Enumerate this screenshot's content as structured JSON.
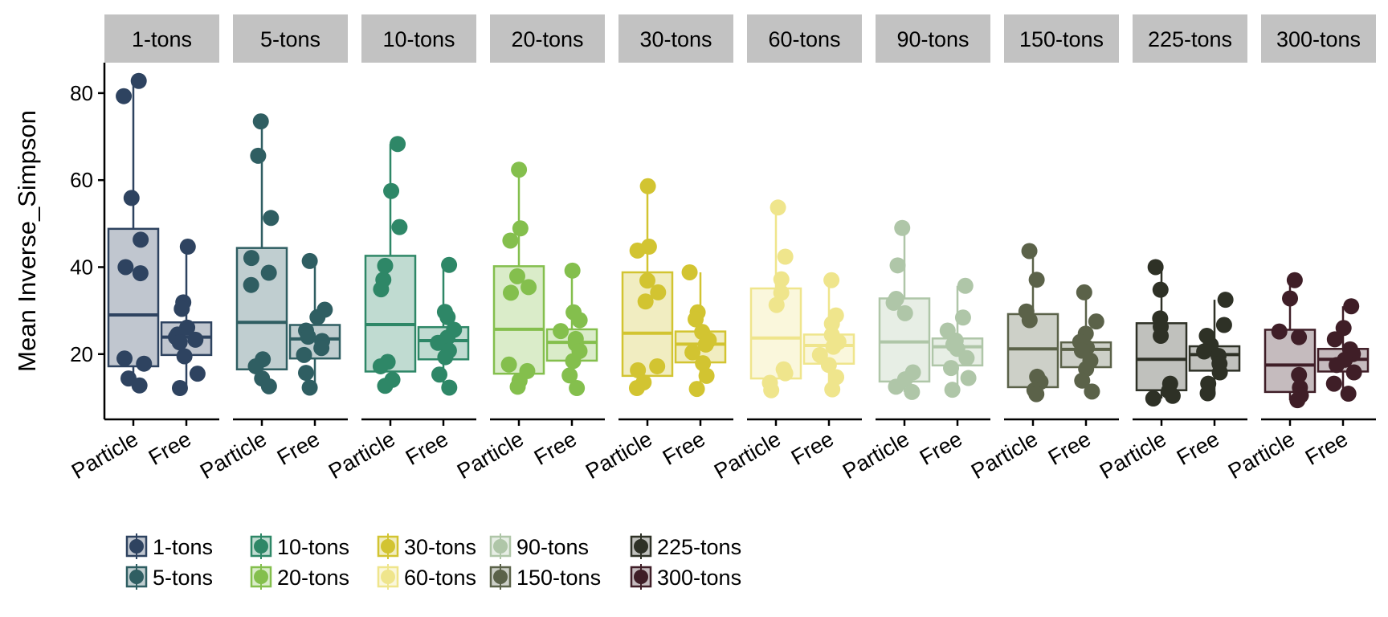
{
  "chart_data": {
    "type": "boxplot",
    "ylabel": "Mean Inverse_Simpson",
    "xlabel": "",
    "ylim": [
      5,
      87
    ],
    "y_ticks": [
      20,
      40,
      60,
      80
    ],
    "categories": [
      "Particle",
      "Free"
    ],
    "grid": false,
    "legend_position": "bottom-left",
    "panels": [
      {
        "name": "1-tons",
        "color": "#2E4360",
        "groups": [
          {
            "category": "Particle",
            "min": 12.8,
            "q1": 17.2,
            "median": 29,
            "q3": 48.8,
            "max": 82.8,
            "points": [
              82.8,
              79.3,
              55.9,
              46.3,
              40,
              38.6,
              19,
              17.8,
              14.4,
              12.8
            ]
          },
          {
            "category": "Free",
            "min": 12.2,
            "q1": 19.8,
            "median": 23.9,
            "q3": 27.3,
            "max": 44.7,
            "points": [
              44.7,
              31.9,
              30.4,
              26.1,
              24.5,
              23.9,
              23.3,
              22.7,
              19.5,
              15.5,
              12.2
            ]
          }
        ]
      },
      {
        "name": "5-tons",
        "color": "#2F5E62",
        "groups": [
          {
            "category": "Particle",
            "min": 12.6,
            "q1": 16.5,
            "median": 27.3,
            "q3": 44.4,
            "max": 73.5,
            "points": [
              73.5,
              65.6,
              51.3,
              42.1,
              38.7,
              35.9,
              18.8,
              17.2,
              14.4,
              12.6
            ]
          },
          {
            "category": "Free",
            "min": 12.3,
            "q1": 19,
            "median": 23.5,
            "q3": 26.7,
            "max": 41.4,
            "points": [
              41.4,
              30.2,
              28.5,
              25.4,
              24,
              23,
              21.4,
              19.8,
              15.7,
              12.3
            ]
          }
        ]
      },
      {
        "name": "10-tons",
        "color": "#2E8767",
        "groups": [
          {
            "category": "Particle",
            "min": 12.7,
            "q1": 16,
            "median": 26.8,
            "q3": 42.6,
            "max": 68.3,
            "points": [
              68.3,
              57.5,
              49.2,
              40.3,
              37.1,
              34.9,
              18.2,
              17.2,
              14.1,
              12.7
            ]
          },
          {
            "category": "Free",
            "min": 12.3,
            "q1": 18.8,
            "median": 23.1,
            "q3": 26.2,
            "max": 40.5,
            "points": [
              40.5,
              29.7,
              28.5,
              25.6,
              23.8,
              22.6,
              20.8,
              19.3,
              15.3,
              12.3
            ]
          }
        ]
      },
      {
        "name": "20-tons",
        "color": "#84BF4D",
        "groups": [
          {
            "category": "Particle",
            "min": 12.5,
            "q1": 15.5,
            "median": 25.7,
            "q3": 40.2,
            "max": 62.4,
            "points": [
              62.4,
              48.9,
              46.1,
              37.9,
              35.4,
              34.1,
              17.6,
              16.1,
              13.9,
              12.5
            ]
          },
          {
            "category": "Free",
            "min": 12.2,
            "q1": 18.5,
            "median": 22.7,
            "q3": 25.7,
            "max": 39.2,
            "points": [
              39.2,
              29.6,
              27.8,
              25.3,
              23.5,
              22.4,
              20.7,
              18.4,
              15.1,
              12.2
            ]
          }
        ]
      },
      {
        "name": "30-tons",
        "color": "#D2C431",
        "groups": [
          {
            "category": "Particle",
            "min": 12.2,
            "q1": 15,
            "median": 24.8,
            "q3": 38.8,
            "max": 58.6,
            "points": [
              58.6,
              44.7,
              43.8,
              36.9,
              34.2,
              32.1,
              17.2,
              16.3,
              13.5,
              12.2
            ]
          },
          {
            "category": "Free",
            "min": 12,
            "q1": 18.1,
            "median": 22.3,
            "q3": 25.2,
            "max": 38.8,
            "points": [
              38.8,
              29.6,
              28,
              25.1,
              23.2,
              22.2,
              20.4,
              17.9,
              15,
              12
            ]
          }
        ]
      },
      {
        "name": "60-tons",
        "color": "#EFE58C",
        "groups": [
          {
            "category": "Particle",
            "min": 11.7,
            "q1": 14.4,
            "median": 23.7,
            "q3": 35.1,
            "max": 53.7,
            "points": [
              53.7,
              42.4,
              37.2,
              34.1,
              31.3,
              16.5,
              15.6,
              13.4,
              11.7
            ]
          },
          {
            "category": "Free",
            "min": 11.9,
            "q1": 17.8,
            "median": 22,
            "q3": 24.5,
            "max": 37,
            "points": [
              37,
              28.9,
              27,
              24.4,
              22.8,
              21.7,
              19.8,
              17.5,
              14.7,
              11.9
            ]
          }
        ]
      },
      {
        "name": "90-tons",
        "color": "#AFC6A8",
        "groups": [
          {
            "category": "Particle",
            "min": 11.3,
            "q1": 13.7,
            "median": 22.8,
            "q3": 32.8,
            "max": 49,
            "points": [
              49,
              40.4,
              32.7,
              31.8,
              29.4,
              15.8,
              14.2,
              12.5,
              11.3
            ]
          },
          {
            "category": "Free",
            "min": 11.8,
            "q1": 17.4,
            "median": 21.7,
            "q3": 23.6,
            "max": 35.7,
            "points": [
              35.7,
              28.4,
              25.4,
              23.1,
              22.2,
              21.2,
              19.1,
              16.8,
              14.5,
              11.8
            ]
          }
        ]
      },
      {
        "name": "150-tons",
        "color": "#5B6249",
        "groups": [
          {
            "category": "Particle",
            "min": 10.8,
            "q1": 12.4,
            "median": 21.2,
            "q3": 29.2,
            "max": 43.7,
            "points": [
              43.7,
              37.1,
              29.8,
              27.8,
              14.8,
              13.6,
              11.7,
              10.8
            ]
          },
          {
            "category": "Free",
            "min": 11.4,
            "q1": 17,
            "median": 21.1,
            "q3": 22.7,
            "max": 34.2,
            "points": [
              34.2,
              27.5,
              24.7,
              22.8,
              21.5,
              20.8,
              18.5,
              16.6,
              13.9,
              11.4
            ]
          }
        ]
      },
      {
        "name": "225-tons",
        "color": "#2E3126",
        "groups": [
          {
            "category": "Particle",
            "min": 9.8,
            "q1": 11.7,
            "median": 18.8,
            "q3": 27.1,
            "max": 40,
            "points": [
              40,
              34.8,
              28.2,
              26.3,
              24.2,
              13.2,
              11.5,
              10.4,
              9.8
            ]
          },
          {
            "category": "Free",
            "min": 11,
            "q1": 16.2,
            "median": 19.9,
            "q3": 21.8,
            "max": 32.5,
            "points": [
              32.5,
              26.7,
              24.2,
              22.1,
              20.6,
              19.6,
              17.8,
              15.8,
              13.2,
              11
            ]
          }
        ]
      },
      {
        "name": "300-tons",
        "color": "#3F1E27",
        "groups": [
          {
            "category": "Particle",
            "min": 9.4,
            "q1": 11.3,
            "median": 17.5,
            "q3": 25.6,
            "max": 37,
            "points": [
              37,
              32.8,
              25.2,
              23.9,
              15.2,
              12.3,
              10.5,
              9.4
            ]
          },
          {
            "category": "Free",
            "min": 10.9,
            "q1": 16,
            "median": 18.8,
            "q3": 21.2,
            "max": 31,
            "points": [
              31,
              26,
              23.4,
              21.1,
              20,
              18.7,
              17.5,
              15.8,
              13.2,
              10.9
            ]
          }
        ]
      }
    ],
    "legend": {
      "entries": [
        {
          "label": "1-tons",
          "color": "#2E4360"
        },
        {
          "label": "5-tons",
          "color": "#2F5E62"
        },
        {
          "label": "10-tons",
          "color": "#2E8767"
        },
        {
          "label": "20-tons",
          "color": "#84BF4D"
        },
        {
          "label": "30-tons",
          "color": "#D2C431"
        },
        {
          "label": "60-tons",
          "color": "#EFE58C"
        },
        {
          "label": "90-tons",
          "color": "#AFC6A8"
        },
        {
          "label": "150-tons",
          "color": "#5B6249"
        },
        {
          "label": "225-tons",
          "color": "#2E3126"
        },
        {
          "label": "300-tons",
          "color": "#3F1E27"
        }
      ],
      "columns": 5,
      "rows": 2
    },
    "strip_fill": "#C2C2C2"
  }
}
